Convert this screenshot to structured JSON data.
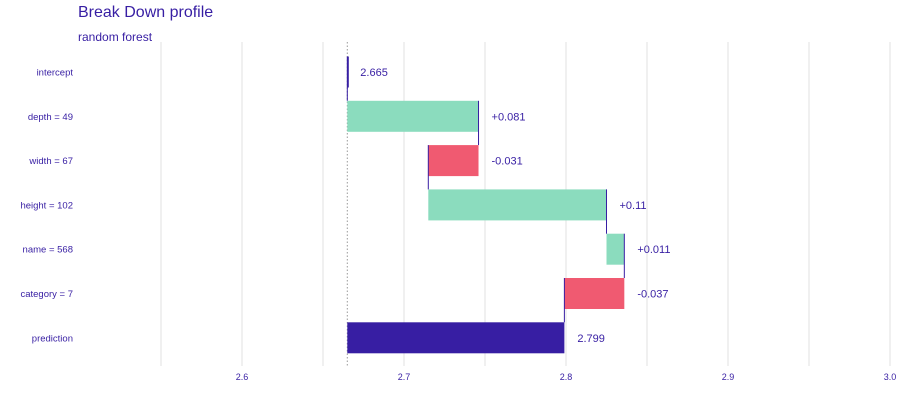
{
  "title": "Break Down profile",
  "subtitle": "random forest",
  "colors": {
    "positive": "#8bdcbe",
    "negative": "#f05a71",
    "prediction": "#371ea3",
    "text": "#371ea3",
    "grid": "#e0e0e0",
    "connector": "#371ea3"
  },
  "chart_data": {
    "type": "waterfall",
    "title": "Break Down profile",
    "subtitle": "random forest",
    "xlim": [
      2.5,
      3.0
    ],
    "xticks": [
      2.6,
      2.7,
      2.8,
      2.9,
      3.0
    ],
    "xtick_labels": [
      "2.6",
      "2.7",
      "2.8",
      "2.9",
      "3.0"
    ],
    "intercept": 2.665,
    "grid": true,
    "bars": [
      {
        "category": "intercept",
        "start": 2.665,
        "end": 2.665,
        "label": "2.665",
        "kind": "intercept"
      },
      {
        "category": "depth = 49",
        "start": 2.665,
        "end": 2.746,
        "label": "+0.081",
        "kind": "positive"
      },
      {
        "category": "width = 67",
        "start": 2.746,
        "end": 2.715,
        "label": "-0.031",
        "kind": "negative"
      },
      {
        "category": "height = 102",
        "start": 2.715,
        "end": 2.825,
        "label": "+0.11",
        "kind": "positive"
      },
      {
        "category": "name = 568",
        "start": 2.825,
        "end": 2.836,
        "label": "+0.011",
        "kind": "positive"
      },
      {
        "category": "category = 7",
        "start": 2.836,
        "end": 2.799,
        "label": "-0.037",
        "kind": "negative"
      },
      {
        "category": "prediction",
        "start": 2.665,
        "end": 2.799,
        "label": "2.799",
        "kind": "prediction"
      }
    ]
  }
}
